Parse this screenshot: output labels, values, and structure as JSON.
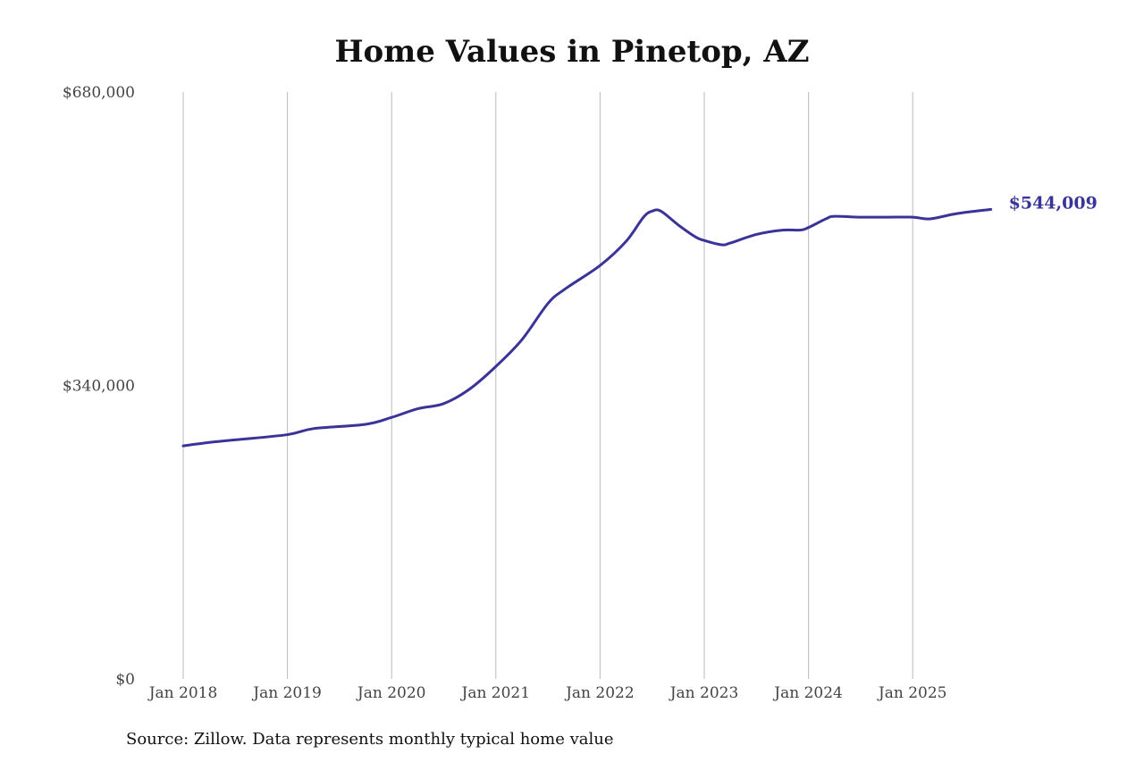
{
  "chart_data": {
    "type": "line",
    "title": "Home Values in Pinetop, AZ",
    "source": "Source: Zillow. Data represents monthly typical home value",
    "ylim": [
      0,
      680000
    ],
    "y_ticks": [
      0,
      340000,
      680000
    ],
    "y_tick_labels": [
      "$0",
      "$340,000",
      "$680,000"
    ],
    "x_tick_labels": [
      "Jan 2018",
      "Jan 2019",
      "Jan 2020",
      "Jan 2021",
      "Jan 2022",
      "Jan 2023",
      "Jan 2024",
      "Jan 2025"
    ],
    "x_ticks": [
      "2018-01",
      "2019-01",
      "2020-01",
      "2021-01",
      "2022-01",
      "2023-01",
      "2024-01",
      "2025-01"
    ],
    "grid": "vertical",
    "line_color": "#3a3499",
    "end_label": "$544,009",
    "series": [
      {
        "points": [
          [
            "2018-01",
            270000
          ],
          [
            "2018-04",
            274000
          ],
          [
            "2018-07",
            277000
          ],
          [
            "2019-01",
            283000
          ],
          [
            "2019-04",
            290000
          ],
          [
            "2019-10",
            295000
          ],
          [
            "2020-01",
            303000
          ],
          [
            "2020-04",
            313000
          ],
          [
            "2020-07",
            319000
          ],
          [
            "2020-10",
            336000
          ],
          [
            "2021-01",
            362000
          ],
          [
            "2021-04",
            393000
          ],
          [
            "2021-07",
            435000
          ],
          [
            "2021-09",
            452000
          ],
          [
            "2022-01",
            479000
          ],
          [
            "2022-04",
            507000
          ],
          [
            "2022-06",
            535000
          ],
          [
            "2022-07",
            542000
          ],
          [
            "2022-08",
            542000
          ],
          [
            "2022-10",
            526000
          ],
          [
            "2022-12",
            512000
          ],
          [
            "2023-01",
            508000
          ],
          [
            "2023-03",
            503000
          ],
          [
            "2023-04",
            505000
          ],
          [
            "2023-07",
            515000
          ],
          [
            "2023-10",
            520000
          ],
          [
            "2023-12",
            520000
          ],
          [
            "2024-01",
            523000
          ],
          [
            "2024-03",
            533000
          ],
          [
            "2024-04",
            536000
          ],
          [
            "2024-07",
            535000
          ],
          [
            "2024-10",
            535000
          ],
          [
            "2025-01",
            535000
          ],
          [
            "2025-03",
            533000
          ],
          [
            "2025-06",
            539000
          ],
          [
            "2025-10",
            544009
          ]
        ]
      }
    ]
  }
}
